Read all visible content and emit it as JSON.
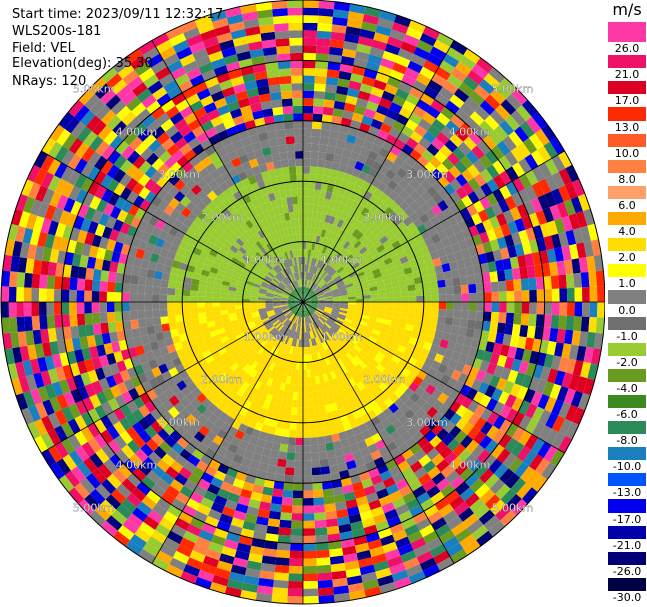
{
  "info": {
    "start_time": "Start time: 2023/09/11 12:32:17",
    "station": "WLS200s-181",
    "field": "Field: VEL",
    "elevation": "Elevation(deg): 35.30",
    "nrays": "NRays: 120"
  },
  "colorbar": {
    "unit": "m/s",
    "ticks": [
      "26.0",
      "21.0",
      "17.0",
      "13.0",
      "10.0",
      "8.0",
      "6.0",
      "4.0",
      "2.0",
      "1.0",
      "0.0",
      "-1.0",
      "-2.0",
      "-4.0",
      "-6.0",
      "-8.0",
      "-10.0",
      "-13.0",
      "-17.0",
      "-21.0",
      "-26.0",
      "-30.0"
    ],
    "colors": [
      "#ff38a8",
      "#ee1166",
      "#dd0022",
      "#ff2a00",
      "#ff5a2a",
      "#ff8040",
      "#ff9f6a",
      "#ffaa00",
      "#ffdd00",
      "#ffff00",
      "#808080",
      "#6f6f6f",
      "#99cc33",
      "#6a9a1f",
      "#3a8a1f",
      "#2a8a5a",
      "#1a7fbf",
      "#0055ff",
      "#0000ee",
      "#0000aa",
      "#000077",
      "#000044"
    ]
  },
  "chart_data": {
    "type": "heatmap",
    "projection": "polar PPI",
    "field": "VEL",
    "units": "m/s",
    "nrays": 120,
    "range_labels": [
      "1.00km",
      "2.00km",
      "3.00km",
      "4.00km",
      "5.00km"
    ],
    "range_rings_km": [
      1,
      2,
      3,
      4,
      5
    ],
    "max_range_km": 5,
    "spokes_deg": [
      0,
      30,
      60,
      90,
      120,
      150,
      180,
      210,
      240,
      270,
      300,
      330
    ],
    "color_levels": [
      -30.0,
      -26.0,
      -21.0,
      -17.0,
      -13.0,
      -10.0,
      -8.0,
      -6.0,
      -4.0,
      -2.0,
      -1.0,
      0.0,
      1.0,
      2.0,
      4.0,
      6.0,
      8.0,
      10.0,
      13.0,
      17.0,
      21.0,
      26.0
    ],
    "regions": [
      {
        "range_km": [
          0,
          0.3
        ],
        "azimuth": "all",
        "velocity": "-6.0 to -4.0"
      },
      {
        "range_km": [
          0.3,
          2.3
        ],
        "azimuth": "north half",
        "velocity": "-2.0 to -1.0"
      },
      {
        "range_km": [
          0.3,
          2.3
        ],
        "azimuth": "south half",
        "velocity": "2.0 to 4.0"
      },
      {
        "range_km": [
          2.3,
          3.0
        ],
        "azimuth": "all",
        "velocity": "-1.0 to 0.0"
      },
      {
        "range_km": [
          3.0,
          5.0
        ],
        "azimuth": "all",
        "velocity": "noise"
      }
    ]
  }
}
